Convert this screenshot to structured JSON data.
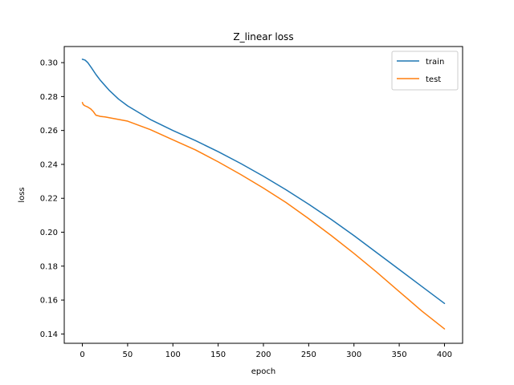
{
  "chart_data": {
    "type": "line",
    "title": "Z_linear loss",
    "xlabel": "epoch",
    "ylabel": "loss",
    "xlim": [
      -20,
      420
    ],
    "ylim": [
      0.1345,
      0.3095
    ],
    "xticks": [
      0,
      50,
      100,
      150,
      200,
      250,
      300,
      350,
      400
    ],
    "xtick_labels": [
      "0",
      "50",
      "100",
      "150",
      "200",
      "250",
      "300",
      "350",
      "400"
    ],
    "yticks": [
      0.14,
      0.16,
      0.18,
      0.2,
      0.22,
      0.24,
      0.26,
      0.28,
      0.3
    ],
    "ytick_labels": [
      "0.14",
      "0.16",
      "0.18",
      "0.20",
      "0.22",
      "0.24",
      "0.26",
      "0.28",
      "0.30"
    ],
    "grid": false,
    "legend_position": "top-right",
    "series": [
      {
        "name": "train",
        "color": "#1f77b4",
        "x": [
          0,
          3,
          6,
          10,
          15,
          20,
          30,
          40,
          50,
          75,
          100,
          125,
          150,
          175,
          200,
          225,
          250,
          275,
          300,
          325,
          350,
          375,
          400
        ],
        "y": [
          0.302,
          0.3015,
          0.3,
          0.297,
          0.293,
          0.2895,
          0.2835,
          0.2785,
          0.2745,
          0.2665,
          0.26,
          0.254,
          0.2475,
          0.2405,
          0.233,
          0.225,
          0.2165,
          0.2075,
          0.198,
          0.188,
          0.178,
          0.168,
          0.158
        ]
      },
      {
        "name": "test",
        "color": "#ff7f0e",
        "x": [
          0,
          1,
          3,
          6,
          9,
          12,
          15,
          20,
          25,
          35,
          50,
          75,
          100,
          125,
          150,
          175,
          200,
          225,
          250,
          275,
          300,
          325,
          350,
          375,
          400
        ],
        "y": [
          0.2765,
          0.2752,
          0.2745,
          0.2738,
          0.2728,
          0.2712,
          0.269,
          0.2683,
          0.268,
          0.267,
          0.2655,
          0.2605,
          0.2545,
          0.2485,
          0.2415,
          0.234,
          0.226,
          0.2175,
          0.208,
          0.198,
          0.1875,
          0.1765,
          0.165,
          0.1535,
          0.143
        ]
      }
    ]
  }
}
